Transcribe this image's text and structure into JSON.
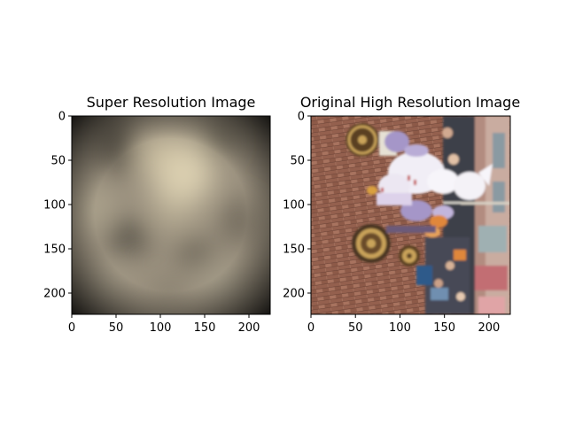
{
  "chart_data": [
    {
      "type": "image",
      "title": "Super Resolution Image",
      "xlim": [
        0,
        224
      ],
      "ylim": [
        224,
        0
      ],
      "xticks": [
        0,
        50,
        100,
        150,
        200
      ],
      "yticks": [
        0,
        50,
        100,
        150,
        200
      ],
      "image_content": "blurred-upscaled-photo",
      "palette": {
        "base": "#9b917f",
        "light": "#ddd1b2",
        "dark": "#4e4a40",
        "edge": "#1f1d19"
      }
    },
    {
      "type": "image",
      "title": "Original High Resolution Image",
      "xlim": [
        0,
        224
      ],
      "ylim": [
        224,
        0
      ],
      "xticks": [
        0,
        50,
        100,
        150,
        200
      ],
      "yticks": [
        0,
        50,
        100,
        150,
        200
      ],
      "image_content": "rotated-parade-photo-brick-street",
      "palette": {
        "brick": "#9c6a58",
        "brick_dark": "#7a4c3e",
        "dress": "#f1eef6",
        "lilac": "#a596c8",
        "wheel": "#5a3f22",
        "wheel_rim": "#c9a35a",
        "crowd": "#3d3f4a",
        "building": "#c7a496",
        "sky": "#d9e2e6",
        "orange": "#e0873a"
      }
    }
  ]
}
